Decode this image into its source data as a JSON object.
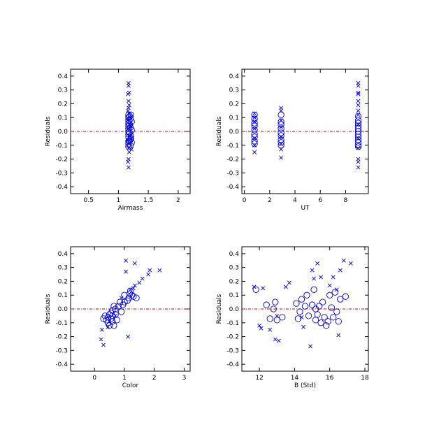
{
  "colors": {
    "points": "#0000cc",
    "zero_line": "#cc0000",
    "axes": "#000000"
  },
  "chart_data": [
    {
      "type": "scatter",
      "xlabel": "Airmass",
      "ylabel": "Residuals",
      "xlim": [
        0.2,
        2.2
      ],
      "ylim": [
        -0.45,
        0.45
      ],
      "xticks": [
        0.5,
        1.0,
        1.5,
        2.0
      ],
      "xtick_labels": [
        "0.5",
        "1",
        "1.5",
        "2"
      ],
      "yticks": [
        -0.4,
        -0.3,
        -0.2,
        -0.1,
        0.0,
        0.1,
        0.2,
        0.3,
        0.4
      ],
      "ytick_labels": [
        "-0.4",
        "-0.3",
        "-0.2",
        "-0.1",
        "0.0",
        "0.1",
        "0.2",
        "0.3",
        "0.4"
      ],
      "reference_line_y": 0,
      "grid": false,
      "series": [
        {
          "marker": "x",
          "points": [
            [
              1.17,
              0.35
            ],
            [
              1.17,
              0.33
            ],
            [
              1.18,
              0.28
            ],
            [
              1.16,
              0.27
            ],
            [
              1.17,
              0.22
            ],
            [
              1.18,
              0.19
            ],
            [
              1.17,
              0.17
            ],
            [
              1.16,
              0.15
            ],
            [
              1.18,
              0.13
            ],
            [
              1.19,
              0.1
            ],
            [
              1.16,
              0.08
            ],
            [
              1.18,
              0.05
            ],
            [
              1.17,
              0.02
            ],
            [
              1.19,
              -0.03
            ],
            [
              1.16,
              -0.06
            ],
            [
              1.18,
              -0.09
            ],
            [
              1.17,
              -0.12
            ],
            [
              1.18,
              -0.15
            ],
            [
              1.17,
              -0.2
            ],
            [
              1.16,
              -0.22
            ],
            [
              1.17,
              -0.26
            ],
            [
              1.2,
              0.04
            ],
            [
              1.21,
              -0.05
            ],
            [
              1.22,
              -0.13
            ]
          ]
        },
        {
          "marker": "o",
          "points": [
            [
              1.17,
              0.12
            ],
            [
              1.21,
              0.12
            ],
            [
              1.17,
              0.1
            ],
            [
              1.2,
              0.09
            ],
            [
              1.17,
              0.08
            ],
            [
              1.22,
              0.07
            ],
            [
              1.17,
              0.06
            ],
            [
              1.19,
              0.05
            ],
            [
              1.17,
              0.04
            ],
            [
              1.2,
              0.03
            ],
            [
              1.17,
              0.02
            ],
            [
              1.22,
              0.01
            ],
            [
              1.17,
              0.0
            ],
            [
              1.19,
              -0.01
            ],
            [
              1.17,
              -0.02
            ],
            [
              1.21,
              -0.03
            ],
            [
              1.17,
              -0.04
            ],
            [
              1.2,
              -0.06
            ],
            [
              1.17,
              -0.07
            ],
            [
              1.22,
              -0.08
            ],
            [
              1.17,
              -0.09
            ],
            [
              1.2,
              -0.1
            ],
            [
              1.17,
              -0.11
            ],
            [
              1.21,
              -0.05
            ],
            [
              1.19,
              0.11
            ],
            [
              1.18,
              -0.07
            ]
          ]
        }
      ]
    },
    {
      "type": "scatter",
      "xlabel": "UT",
      "ylabel": "Residuals",
      "xlim": [
        -0.2,
        9.8
      ],
      "ylim": [
        -0.45,
        0.45
      ],
      "xticks": [
        0,
        2,
        4,
        6,
        8
      ],
      "xtick_labels": [
        "0",
        "2",
        "4",
        "6",
        "8"
      ],
      "yticks": [
        -0.4,
        -0.3,
        -0.2,
        -0.1,
        0.0,
        0.1,
        0.2,
        0.3,
        0.4
      ],
      "ytick_labels": [
        "-0.4",
        "-0.3",
        "-0.2",
        "-0.1",
        "0.0",
        "0.1",
        "0.2",
        "0.3",
        "0.4"
      ],
      "reference_line_y": 0,
      "grid": false,
      "series": [
        {
          "marker": "x",
          "points": [
            [
              0.8,
              0.13
            ],
            [
              0.8,
              0.1
            ],
            [
              0.8,
              0.07
            ],
            [
              0.8,
              0.02
            ],
            [
              0.8,
              -0.05
            ],
            [
              0.8,
              -0.1
            ],
            [
              0.8,
              -0.15
            ],
            [
              2.9,
              0.17
            ],
            [
              2.9,
              0.15
            ],
            [
              2.9,
              0.08
            ],
            [
              2.9,
              0.03
            ],
            [
              2.9,
              -0.04
            ],
            [
              2.9,
              -0.09
            ],
            [
              2.9,
              -0.13
            ],
            [
              2.9,
              -0.19
            ],
            [
              9.0,
              0.35
            ],
            [
              9.0,
              0.33
            ],
            [
              9.0,
              0.28
            ],
            [
              9.0,
              0.27
            ],
            [
              9.0,
              0.22
            ],
            [
              9.0,
              0.19
            ],
            [
              9.0,
              0.15
            ],
            [
              9.0,
              0.12
            ],
            [
              9.0,
              0.05
            ],
            [
              9.0,
              -0.05
            ],
            [
              9.0,
              -0.12
            ],
            [
              9.0,
              -0.2
            ],
            [
              9.0,
              -0.22
            ],
            [
              9.0,
              -0.26
            ]
          ]
        },
        {
          "marker": "o",
          "points": [
            [
              0.8,
              0.12
            ],
            [
              0.8,
              0.09
            ],
            [
              0.8,
              0.06
            ],
            [
              0.8,
              0.04
            ],
            [
              0.8,
              0.01
            ],
            [
              0.8,
              -0.02
            ],
            [
              0.8,
              -0.04
            ],
            [
              0.8,
              -0.07
            ],
            [
              0.8,
              -0.09
            ],
            [
              2.9,
              0.12
            ],
            [
              2.9,
              0.07
            ],
            [
              2.9,
              0.05
            ],
            [
              2.9,
              0.02
            ],
            [
              2.9,
              -0.01
            ],
            [
              2.9,
              -0.03
            ],
            [
              2.9,
              -0.06
            ],
            [
              2.9,
              -0.08
            ],
            [
              2.9,
              -0.1
            ],
            [
              9.0,
              0.11
            ],
            [
              9.0,
              0.08
            ],
            [
              9.0,
              0.06
            ],
            [
              9.0,
              0.04
            ],
            [
              9.0,
              0.02
            ],
            [
              9.0,
              0.0
            ],
            [
              9.0,
              -0.02
            ],
            [
              9.0,
              -0.04
            ],
            [
              9.0,
              -0.06
            ],
            [
              9.0,
              -0.08
            ],
            [
              9.0,
              -0.1
            ],
            [
              9.0,
              -0.11
            ]
          ]
        }
      ]
    },
    {
      "type": "scatter",
      "xlabel": "Color",
      "ylabel": "Residuals",
      "xlim": [
        -0.8,
        3.2
      ],
      "ylim": [
        -0.45,
        0.45
      ],
      "xticks": [
        0,
        1,
        2,
        3
      ],
      "xtick_labels": [
        "0",
        "1",
        "2",
        "3"
      ],
      "yticks": [
        -0.4,
        -0.3,
        -0.2,
        -0.1,
        0.0,
        0.1,
        0.2,
        0.3,
        0.4
      ],
      "ytick_labels": [
        "-0.4",
        "-0.3",
        "-0.2",
        "-0.1",
        "0.0",
        "0.1",
        "0.2",
        "0.3",
        "0.4"
      ],
      "reference_line_y": 0,
      "grid": false,
      "series": [
        {
          "marker": "x",
          "points": [
            [
              1.05,
              0.35
            ],
            [
              1.35,
              0.33
            ],
            [
              1.05,
              0.27
            ],
            [
              2.18,
              0.28
            ],
            [
              1.85,
              0.28
            ],
            [
              1.8,
              0.25
            ],
            [
              1.6,
              0.22
            ],
            [
              1.5,
              0.19
            ],
            [
              1.35,
              0.17
            ],
            [
              1.3,
              0.15
            ],
            [
              1.2,
              0.14
            ],
            [
              0.25,
              -0.15
            ],
            [
              0.22,
              -0.22
            ],
            [
              0.3,
              -0.26
            ],
            [
              1.12,
              -0.2
            ],
            [
              0.45,
              -0.13
            ],
            [
              0.5,
              -0.09
            ],
            [
              0.7,
              -0.05
            ],
            [
              0.9,
              0.08
            ]
          ]
        },
        {
          "marker": "o",
          "points": [
            [
              1.2,
              0.13
            ],
            [
              1.18,
              0.11
            ],
            [
              1.25,
              0.1
            ],
            [
              1.15,
              0.08
            ],
            [
              1.3,
              0.09
            ],
            [
              1.1,
              0.06
            ],
            [
              1.0,
              0.05
            ],
            [
              0.95,
              0.03
            ],
            [
              0.85,
              0.05
            ],
            [
              0.8,
              0.02
            ],
            [
              0.7,
              0.0
            ],
            [
              0.65,
              0.02
            ],
            [
              0.6,
              -0.01
            ],
            [
              0.55,
              -0.03
            ],
            [
              0.6,
              -0.05
            ],
            [
              0.5,
              -0.04
            ],
            [
              0.55,
              -0.07
            ],
            [
              0.45,
              -0.06
            ],
            [
              0.4,
              -0.08
            ],
            [
              0.35,
              -0.05
            ],
            [
              0.45,
              -0.1
            ],
            [
              0.5,
              -0.12
            ],
            [
              0.6,
              -0.09
            ],
            [
              0.7,
              -0.04
            ],
            [
              0.75,
              -0.08
            ],
            [
              0.65,
              -0.12
            ],
            [
              0.9,
              -0.02
            ],
            [
              1.0,
              0.1
            ],
            [
              1.4,
              0.08
            ],
            [
              0.3,
              -0.07
            ]
          ]
        }
      ]
    },
    {
      "type": "scatter",
      "xlabel": "B (Std)",
      "ylabel": "Residuals",
      "xlim": [
        11,
        18.2
      ],
      "ylim": [
        -0.45,
        0.45
      ],
      "xticks": [
        12,
        14,
        16,
        18
      ],
      "xtick_labels": [
        "12",
        "14",
        "16",
        "18"
      ],
      "yticks": [
        -0.4,
        -0.3,
        -0.2,
        -0.1,
        0.0,
        0.1,
        0.2,
        0.3,
        0.4
      ],
      "ytick_labels": [
        "-0.4",
        "-0.3",
        "-0.2",
        "-0.1",
        "0.0",
        "0.1",
        "0.2",
        "0.3",
        "0.4"
      ],
      "reference_line_y": 0,
      "grid": false,
      "series": [
        {
          "marker": "x",
          "points": [
            [
              11.7,
              0.16
            ],
            [
              12.2,
              0.15
            ],
            [
              12.0,
              -0.12
            ],
            [
              12.1,
              -0.14
            ],
            [
              12.6,
              -0.15
            ],
            [
              12.9,
              -0.22
            ],
            [
              13.1,
              -0.23
            ],
            [
              13.5,
              0.16
            ],
            [
              13.7,
              0.19
            ],
            [
              14.4,
              -0.06
            ],
            [
              14.5,
              -0.13
            ],
            [
              14.9,
              -0.27
            ],
            [
              15.1,
              0.22
            ],
            [
              15.3,
              0.33
            ],
            [
              15.5,
              0.23
            ],
            [
              16.0,
              0.17
            ],
            [
              16.2,
              0.23
            ],
            [
              16.5,
              -0.19
            ],
            [
              16.6,
              0.28
            ],
            [
              16.8,
              0.35
            ],
            [
              17.2,
              0.33
            ],
            [
              16.4,
              0.14
            ],
            [
              15.0,
              0.28
            ],
            [
              13.0,
              -0.05
            ]
          ]
        },
        {
          "marker": "o",
          "points": [
            [
              11.8,
              0.14
            ],
            [
              12.4,
              0.03
            ],
            [
              12.6,
              -0.07
            ],
            [
              12.8,
              0.0
            ],
            [
              12.9,
              0.05
            ],
            [
              13.0,
              -0.08
            ],
            [
              13.3,
              -0.06
            ],
            [
              14.1,
              0.04
            ],
            [
              14.2,
              -0.07
            ],
            [
              14.4,
              0.07
            ],
            [
              14.6,
              0.02
            ],
            [
              14.7,
              0.1
            ],
            [
              14.8,
              -0.05
            ],
            [
              15.0,
              0.03
            ],
            [
              15.1,
              0.14
            ],
            [
              15.2,
              -0.08
            ],
            [
              15.3,
              -0.04
            ],
            [
              15.4,
              0.02
            ],
            [
              15.5,
              -0.1
            ],
            [
              15.6,
              0.05
            ],
            [
              15.7,
              -0.06
            ],
            [
              15.8,
              -0.12
            ],
            [
              15.9,
              -0.09
            ],
            [
              16.0,
              0.1
            ],
            [
              16.1,
              0.01
            ],
            [
              16.2,
              -0.06
            ],
            [
              16.3,
              0.12
            ],
            [
              16.4,
              -0.02
            ],
            [
              16.5,
              -0.09
            ],
            [
              16.6,
              0.07
            ],
            [
              16.9,
              0.09
            ],
            [
              15.2,
              0.0
            ],
            [
              14.3,
              -0.02
            ]
          ]
        }
      ]
    }
  ]
}
